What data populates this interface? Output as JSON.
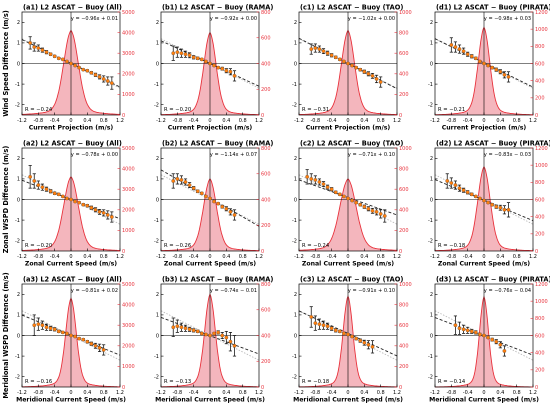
{
  "figure": {
    "row_ylabels": [
      "Wind Speed Difference (m/s)",
      "Zonal WSPD Difference (m/s)",
      "Meridional WSPD Difference (m/s)"
    ],
    "row_xlabels": [
      "Current Projection (m/s)",
      "Zonal Current Speed (m/s)",
      "Meridional Current Speed (m/s)"
    ],
    "right_ylabel": "Counts",
    "x_ticks": [
      "-1.2",
      "-0.8",
      "-0.4",
      "0",
      "0.4",
      "0.8",
      "1.2"
    ],
    "y_ticks": [
      "-2",
      "-1",
      "0",
      "1",
      "2"
    ],
    "count_ticks_a": [
      "0",
      "1000",
      "2000",
      "3000",
      "4000",
      "5000"
    ],
    "count_ticks_b": [
      "0",
      "200",
      "400",
      "600",
      "800"
    ],
    "count_ticks_c": [
      "0",
      "200",
      "400",
      "600",
      "800",
      "1000"
    ],
    "count_ticks_d": [
      "0",
      "200",
      "400",
      "600",
      "800",
      "1000",
      "1200"
    ],
    "colors": {
      "hist_fill": "#f4b6bd",
      "hist_line": "#e8323c",
      "marker": "#ff7f0e",
      "errbar": "#1a1a1a",
      "fit": "#222222",
      "ref": "#bbbbbb",
      "right_axis": "#e8323c"
    }
  },
  "chart_data": [
    {
      "type": "scatter",
      "title": "(a1) L2 ASCAT − Buoy (All)",
      "eq": "y = −0.96x + 0.01",
      "r": "R = −0.24",
      "slope": -0.96,
      "intercept": 0.01,
      "cmax": 5000,
      "cticks": "a",
      "xlabel": "Current Projection (m/s)",
      "x": [
        -1.0,
        -0.9,
        -0.8,
        -0.7,
        -0.6,
        -0.5,
        -0.4,
        -0.3,
        -0.2,
        -0.1,
        0,
        0.1,
        0.2,
        0.3,
        0.4,
        0.5,
        0.6,
        0.7,
        0.8,
        0.9,
        1.0
      ],
      "y": [
        1.0,
        0.8,
        0.75,
        0.65,
        0.55,
        0.45,
        0.35,
        0.25,
        0.2,
        0.1,
        0.0,
        -0.1,
        -0.2,
        -0.3,
        -0.35,
        -0.45,
        -0.55,
        -0.65,
        -0.75,
        -0.85,
        -0.95
      ],
      "err": [
        0.3,
        0.2,
        0.15,
        0.1,
        0.08,
        0.06,
        0.05,
        0.04,
        0.03,
        0.03,
        0.03,
        0.03,
        0.03,
        0.04,
        0.05,
        0.06,
        0.08,
        0.1,
        0.15,
        0.2,
        0.3
      ],
      "hist_peak": 4100,
      "hist_width": 0.18
    },
    {
      "type": "scatter",
      "title": "(b1) L2 ASCAT − Buoy (RAMA)",
      "eq": "y = −0.92x + 0.00",
      "r": "R = −0.20",
      "slope": -0.92,
      "intercept": 0.0,
      "cmax": 800,
      "cticks": "b",
      "xlabel": "Current Projection (m/s)",
      "x": [
        -0.9,
        -0.8,
        -0.7,
        -0.6,
        -0.5,
        -0.4,
        -0.3,
        -0.2,
        -0.1,
        0,
        0.1,
        0.2,
        0.3,
        0.4,
        0.5,
        0.6
      ],
      "y": [
        0.5,
        0.55,
        0.5,
        0.45,
        0.4,
        0.3,
        0.25,
        0.2,
        0.1,
        0.0,
        -0.1,
        -0.2,
        -0.25,
        -0.35,
        -0.4,
        -0.6
      ],
      "err": [
        0.35,
        0.25,
        0.2,
        0.15,
        0.12,
        0.08,
        0.06,
        0.05,
        0.04,
        0.04,
        0.04,
        0.05,
        0.07,
        0.1,
        0.15,
        0.25
      ],
      "hist_peak": 640,
      "hist_width": 0.15
    },
    {
      "type": "scatter",
      "title": "(c1) L2 ASCAT − Buoy (TAO)",
      "eq": "y = −1.02x + 0.00",
      "r": "R = −0.31",
      "slope": -1.02,
      "intercept": 0.0,
      "cmax": 1000,
      "cticks": "c",
      "xlabel": "Current Projection (m/s)",
      "x": [
        -0.9,
        -0.8,
        -0.7,
        -0.6,
        -0.5,
        -0.4,
        -0.3,
        -0.2,
        -0.1,
        0,
        0.1,
        0.2,
        0.3,
        0.4,
        0.5,
        0.6,
        0.7,
        0.8
      ],
      "y": [
        0.7,
        0.75,
        0.7,
        0.6,
        0.5,
        0.4,
        0.3,
        0.2,
        0.1,
        0.0,
        -0.1,
        -0.2,
        -0.3,
        -0.4,
        -0.5,
        -0.6,
        -0.75,
        -0.9
      ],
      "err": [
        0.25,
        0.2,
        0.15,
        0.12,
        0.1,
        0.08,
        0.06,
        0.05,
        0.04,
        0.04,
        0.04,
        0.05,
        0.06,
        0.08,
        0.1,
        0.12,
        0.18,
        0.25
      ],
      "hist_peak": 820,
      "hist_width": 0.16
    },
    {
      "type": "scatter",
      "title": "(d1) L2 ASCAT − Buoy (PIRATA)",
      "eq": "y = −0.98x + 0.03",
      "r": "R = −0.21",
      "slope": -0.98,
      "intercept": 0.03,
      "cmax": 1200,
      "cticks": "d",
      "xlabel": "Current Projection (m/s)",
      "x": [
        -0.8,
        -0.7,
        -0.6,
        -0.5,
        -0.4,
        -0.3,
        -0.2,
        -0.1,
        0,
        0.1,
        0.2,
        0.3,
        0.4,
        0.5,
        0.6
      ],
      "y": [
        0.9,
        0.8,
        0.7,
        0.6,
        0.45,
        0.35,
        0.25,
        0.1,
        0.0,
        -0.1,
        -0.2,
        -0.3,
        -0.4,
        -0.55,
        -0.65
      ],
      "err": [
        0.35,
        0.25,
        0.2,
        0.15,
        0.1,
        0.08,
        0.06,
        0.05,
        0.04,
        0.05,
        0.06,
        0.08,
        0.1,
        0.15,
        0.25
      ],
      "hist_peak": 1020,
      "hist_width": 0.14
    },
    {
      "type": "scatter",
      "title": "(a2) L2 ASCAT − Buoy (All)",
      "eq": "y = −0.78x + 0.00",
      "r": "R = −0.20",
      "slope": -0.78,
      "intercept": 0.0,
      "cmax": 5000,
      "cticks": "a",
      "xlabel": "Zonal Current Speed (m/s)",
      "x": [
        -1.0,
        -0.9,
        -0.8,
        -0.7,
        -0.6,
        -0.5,
        -0.4,
        -0.3,
        -0.2,
        -0.1,
        0,
        0.1,
        0.2,
        0.3,
        0.4,
        0.5,
        0.6,
        0.7,
        0.8,
        0.9,
        1.0
      ],
      "y": [
        1.1,
        0.9,
        0.7,
        0.6,
        0.5,
        0.4,
        0.3,
        0.25,
        0.15,
        0.05,
        0.0,
        -0.1,
        -0.15,
        -0.25,
        -0.3,
        -0.4,
        -0.5,
        -0.6,
        -0.65,
        -0.75,
        -0.85
      ],
      "err": [
        0.55,
        0.35,
        0.2,
        0.15,
        0.1,
        0.08,
        0.06,
        0.05,
        0.04,
        0.03,
        0.03,
        0.03,
        0.04,
        0.05,
        0.06,
        0.08,
        0.1,
        0.12,
        0.15,
        0.2,
        0.25
      ],
      "hist_peak": 3600,
      "hist_width": 0.18
    },
    {
      "type": "scatter",
      "title": "(b2) L2 ASCAT − Buoy (RAMA)",
      "eq": "y = −1.14x + 0.07",
      "r": "R = −0.26",
      "slope": -1.14,
      "intercept": 0.07,
      "cmax": 800,
      "cticks": "b",
      "xlabel": "Zonal Current Speed (m/s)",
      "x": [
        -0.9,
        -0.8,
        -0.7,
        -0.6,
        -0.5,
        -0.4,
        -0.3,
        -0.2,
        -0.1,
        0,
        0.1,
        0.2,
        0.3,
        0.4,
        0.5,
        0.6
      ],
      "y": [
        0.9,
        1.0,
        0.95,
        0.85,
        0.7,
        0.55,
        0.4,
        0.3,
        0.15,
        0.05,
        -0.1,
        -0.2,
        -0.35,
        -0.45,
        -0.6,
        -0.75
      ],
      "err": [
        0.35,
        0.25,
        0.2,
        0.15,
        0.12,
        0.08,
        0.06,
        0.05,
        0.04,
        0.04,
        0.04,
        0.05,
        0.07,
        0.1,
        0.15,
        0.25
      ],
      "hist_peak": 560,
      "hist_width": 0.16
    },
    {
      "type": "scatter",
      "title": "(c2) L2 ASCAT − Buoy (TAO)",
      "eq": "y = −0.71x + 0.10",
      "r": "R = −0.24",
      "slope": -0.71,
      "intercept": 0.1,
      "cmax": 1000,
      "cticks": "c",
      "xlabel": "Zonal Current Speed (m/s)",
      "x": [
        -1.0,
        -0.9,
        -0.8,
        -0.7,
        -0.6,
        -0.5,
        -0.4,
        -0.3,
        -0.2,
        -0.1,
        0,
        0.1,
        0.2,
        0.3,
        0.4,
        0.5,
        0.6,
        0.7,
        0.8,
        0.9
      ],
      "y": [
        1.1,
        1.0,
        0.95,
        0.85,
        0.75,
        0.6,
        0.5,
        0.35,
        0.25,
        0.15,
        0.05,
        -0.05,
        -0.15,
        -0.25,
        -0.35,
        -0.45,
        -0.55,
        -0.6,
        -0.7,
        -0.8
      ],
      "err": [
        0.35,
        0.25,
        0.2,
        0.15,
        0.12,
        0.1,
        0.08,
        0.06,
        0.05,
        0.04,
        0.04,
        0.04,
        0.05,
        0.06,
        0.08,
        0.1,
        0.12,
        0.15,
        0.2,
        0.3
      ],
      "hist_peak": 700,
      "hist_width": 0.2
    },
    {
      "type": "scatter",
      "title": "(d2) L2 ASCAT − Buoy (PIRATA)",
      "eq": "y = −0.83x − 0.03",
      "r": "R = −0.18",
      "slope": -0.83,
      "intercept": -0.03,
      "cmax": 1200,
      "cticks": "d",
      "xlabel": "Zonal Current Speed (m/s)",
      "x": [
        -0.9,
        -0.8,
        -0.7,
        -0.6,
        -0.5,
        -0.4,
        -0.3,
        -0.2,
        -0.1,
        0,
        0.1,
        0.2,
        0.3,
        0.4,
        0.5,
        0.6
      ],
      "y": [
        0.9,
        0.8,
        0.7,
        0.55,
        0.45,
        0.35,
        0.25,
        0.15,
        0.05,
        -0.05,
        -0.15,
        -0.25,
        -0.35,
        -0.4,
        -0.5,
        -0.5
      ],
      "err": [
        0.35,
        0.25,
        0.2,
        0.15,
        0.1,
        0.08,
        0.06,
        0.05,
        0.04,
        0.04,
        0.05,
        0.06,
        0.08,
        0.12,
        0.2,
        0.35
      ],
      "hist_peak": 980,
      "hist_width": 0.15
    },
    {
      "type": "scatter",
      "title": "(a3) L2 ASCAT − Buoy (All)",
      "eq": "y = −0.81x + 0.02",
      "r": "R = −0.16",
      "slope": -0.81,
      "intercept": 0.02,
      "cmax": 5000,
      "cticks": "a",
      "xlabel": "Meridional Current Speed (m/s)",
      "x": [
        -0.9,
        -0.8,
        -0.7,
        -0.6,
        -0.5,
        -0.4,
        -0.3,
        -0.2,
        -0.1,
        0,
        0.1,
        0.2,
        0.3,
        0.4,
        0.5,
        0.6,
        0.7,
        0.8
      ],
      "y": [
        0.5,
        0.55,
        0.5,
        0.4,
        0.35,
        0.3,
        0.2,
        0.15,
        0.1,
        0.0,
        -0.05,
        -0.15,
        -0.2,
        -0.3,
        -0.4,
        -0.5,
        -0.6,
        -0.7
      ],
      "err": [
        0.5,
        0.3,
        0.2,
        0.15,
        0.1,
        0.08,
        0.06,
        0.05,
        0.04,
        0.03,
        0.03,
        0.04,
        0.05,
        0.06,
        0.08,
        0.12,
        0.18,
        0.25
      ],
      "hist_peak": 4300,
      "hist_width": 0.13
    },
    {
      "type": "scatter",
      "title": "(b3) L2 ASCAT − Buoy (RAMA)",
      "eq": "y = −0.74x − 0.01",
      "r": "R = −0.13",
      "slope": -0.74,
      "intercept": -0.01,
      "cmax": 800,
      "cticks": "b",
      "xlabel": "Meridional Current Speed (m/s)",
      "x": [
        -0.9,
        -0.8,
        -0.7,
        -0.6,
        -0.5,
        -0.4,
        -0.3,
        -0.2,
        -0.1,
        0,
        0.1,
        0.2,
        0.3,
        0.4,
        0.5,
        0.6
      ],
      "y": [
        0.4,
        0.45,
        0.4,
        0.35,
        0.3,
        0.25,
        0.2,
        0.1,
        0.05,
        0.0,
        0.1,
        0.15,
        0.0,
        -0.1,
        -0.3,
        -0.5
      ],
      "err": [
        0.45,
        0.3,
        0.2,
        0.15,
        0.1,
        0.08,
        0.06,
        0.05,
        0.04,
        0.04,
        0.05,
        0.08,
        0.15,
        0.3,
        0.45,
        0.5
      ],
      "hist_peak": 720,
      "hist_width": 0.13
    },
    {
      "type": "scatter",
      "title": "(c3) L2 ASCAT − Buoy (TAO)",
      "eq": "y = −0.91x + 0.10",
      "r": "R = −0.18",
      "slope": -0.91,
      "intercept": 0.1,
      "cmax": 1000,
      "cticks": "c",
      "xlabel": "Meridional Current Speed (m/s)",
      "x": [
        -0.9,
        -0.8,
        -0.7,
        -0.6,
        -0.5,
        -0.4,
        -0.3,
        -0.2,
        -0.1,
        0,
        0.1,
        0.2,
        0.3,
        0.4,
        0.5,
        0.6
      ],
      "y": [
        0.9,
        0.6,
        0.55,
        0.5,
        0.45,
        0.35,
        0.25,
        0.2,
        0.1,
        0.05,
        -0.05,
        -0.15,
        -0.25,
        -0.35,
        -0.45,
        -0.55
      ],
      "err": [
        0.5,
        0.35,
        0.25,
        0.2,
        0.15,
        0.1,
        0.08,
        0.06,
        0.05,
        0.04,
        0.05,
        0.06,
        0.08,
        0.12,
        0.2,
        0.3
      ],
      "hist_peak": 880,
      "hist_width": 0.12
    },
    {
      "type": "scatter",
      "title": "(d3) L2 ASCAT − Buoy (PIRATA)",
      "eq": "y = −0.76x − 0.04",
      "r": "R = −0.14",
      "slope": -0.76,
      "intercept": -0.04,
      "cmax": 1200,
      "cticks": "d",
      "xlabel": "Meridional Current Speed (m/s)",
      "x": [
        -0.7,
        -0.6,
        -0.5,
        -0.4,
        -0.3,
        -0.2,
        -0.1,
        0,
        0.1,
        0.2,
        0.3,
        0.4,
        0.5
      ],
      "y": [
        0.5,
        0.35,
        0.3,
        0.25,
        0.2,
        0.15,
        0.05,
        0.0,
        -0.1,
        -0.2,
        -0.3,
        -0.45,
        -0.75
      ],
      "err": [
        0.45,
        0.3,
        0.2,
        0.15,
        0.1,
        0.08,
        0.06,
        0.05,
        0.05,
        0.07,
        0.1,
        0.15,
        0.25
      ],
      "hist_peak": 1050,
      "hist_width": 0.11
    }
  ]
}
